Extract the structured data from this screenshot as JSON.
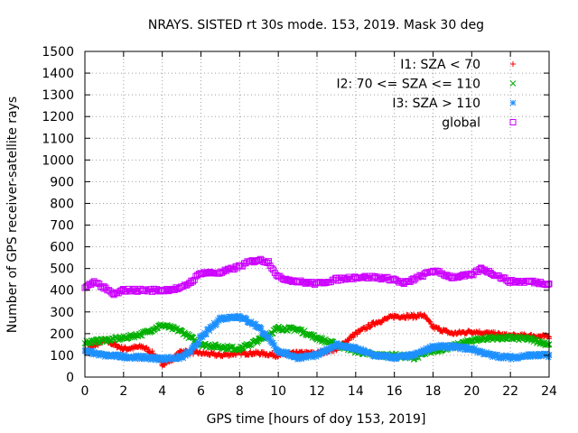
{
  "chart_data": {
    "type": "scatter",
    "title": "NRAYS. SISTED rt 30s mode. 153, 2019. Mask 30 deg",
    "xlabel": "GPS time [hours of doy 153, 2019]",
    "ylabel": "Number of GPS receiver-satellite rays",
    "xlim": [
      0,
      24
    ],
    "ylim": [
      0,
      1500
    ],
    "xticks": [
      0,
      2,
      4,
      6,
      8,
      10,
      12,
      14,
      16,
      18,
      20,
      22,
      24
    ],
    "yticks": [
      0,
      100,
      200,
      300,
      400,
      500,
      600,
      700,
      800,
      900,
      1000,
      1100,
      1200,
      1300,
      1400,
      1500
    ],
    "grid": true,
    "legend_position": "top-right",
    "series": [
      {
        "name": "I1: SZA < 70",
        "marker": "plus",
        "color": "#ff0000",
        "x": [
          0,
          1,
          1.5,
          2,
          3,
          3.5,
          4,
          4.5,
          5,
          6,
          7,
          8,
          9,
          10,
          11,
          12,
          13,
          14,
          15,
          16,
          17,
          17.5,
          18,
          19,
          20,
          21,
          22,
          23,
          24
        ],
        "y": [
          120,
          170,
          150,
          130,
          140,
          110,
          60,
          80,
          120,
          110,
          100,
          110,
          110,
          100,
          110,
          110,
          130,
          200,
          250,
          280,
          280,
          285,
          230,
          200,
          210,
          200,
          190,
          190,
          185
        ]
      },
      {
        "name": "I2: 70 <= SZA <= 110",
        "marker": "cross",
        "color": "#00b000",
        "x": [
          0,
          1,
          2,
          3,
          4,
          5,
          6,
          7,
          8,
          9,
          10,
          11,
          12,
          13,
          14,
          15,
          16,
          17,
          18,
          19,
          20,
          21,
          22,
          23,
          24
        ],
        "y": [
          160,
          170,
          180,
          200,
          240,
          210,
          150,
          140,
          130,
          170,
          225,
          220,
          180,
          150,
          120,
          100,
          100,
          90,
          120,
          140,
          170,
          180,
          180,
          175,
          150
        ]
      },
      {
        "name": "I3: SZA > 110",
        "marker": "star",
        "color": "#1e90ff",
        "x": [
          0,
          1,
          2,
          3,
          4,
          5,
          5.5,
          6,
          7,
          8,
          9,
          10,
          11,
          12,
          13,
          14,
          15,
          16,
          17,
          18,
          19,
          20,
          21,
          22,
          23,
          24
        ],
        "y": [
          120,
          100,
          95,
          90,
          85,
          90,
          120,
          180,
          270,
          280,
          230,
          120,
          90,
          100,
          150,
          130,
          100,
          90,
          100,
          140,
          140,
          130,
          100,
          90,
          100,
          100
        ]
      },
      {
        "name": "global",
        "marker": "square",
        "color": "#cc00ff",
        "x": [
          0,
          0.5,
          1,
          1.5,
          2,
          3,
          4,
          5,
          5.5,
          6,
          7,
          8,
          8.5,
          9,
          9.5,
          10,
          11,
          12,
          13,
          14,
          15,
          16,
          16.5,
          17,
          18,
          19,
          20,
          20.5,
          21,
          22,
          23,
          24
        ],
        "y": [
          410,
          440,
          410,
          380,
          400,
          400,
          400,
          410,
          440,
          480,
          480,
          510,
          530,
          540,
          530,
          460,
          440,
          430,
          450,
          460,
          460,
          450,
          430,
          450,
          490,
          460,
          470,
          500,
          480,
          440,
          440,
          430
        ]
      }
    ]
  }
}
